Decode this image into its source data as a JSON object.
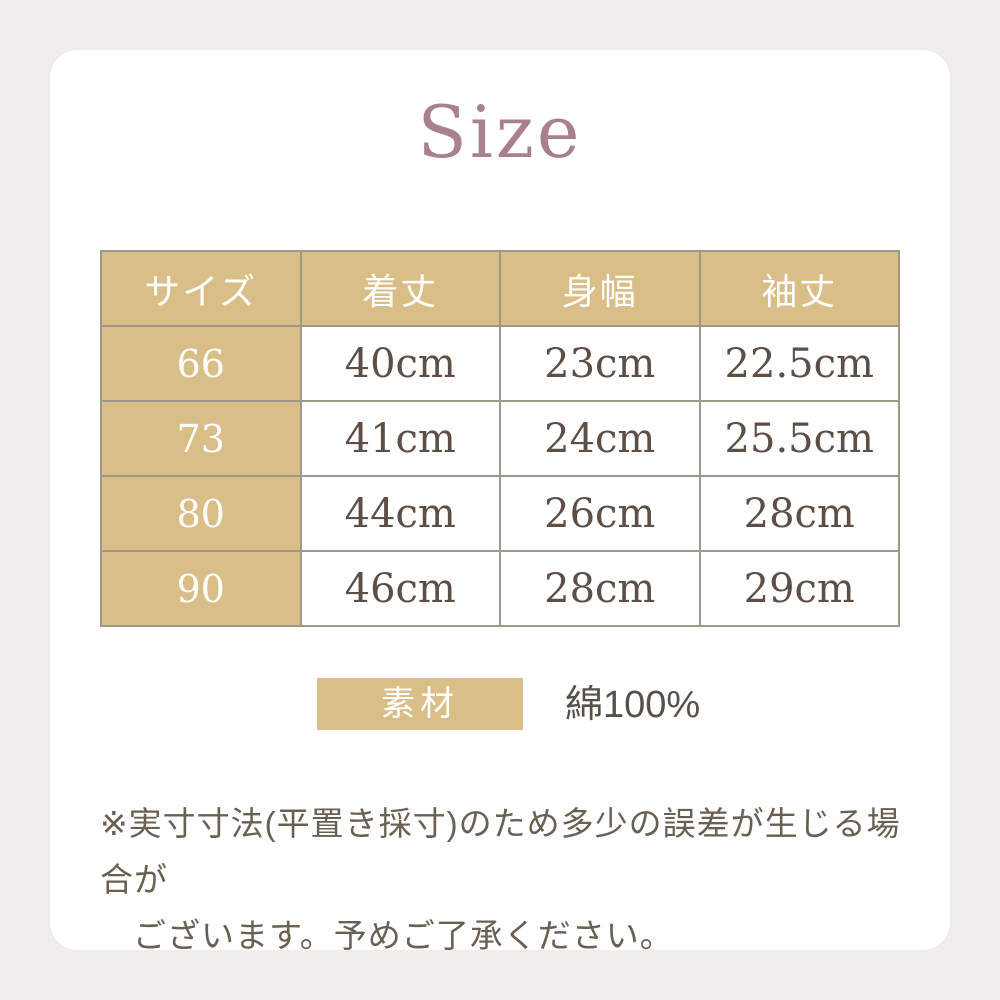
{
  "page": {
    "title": "Size",
    "colors": {
      "page_background": "#f2eded",
      "card_background": "#ffffff",
      "accent_tan": "#d9be87",
      "table_border": "#9e988a",
      "title_text": "#a8808f",
      "cell_text": "#5d4e46",
      "note_text": "#6a6052"
    }
  },
  "size_table": {
    "columns": [
      "サイズ",
      "着丈",
      "身幅",
      "袖丈"
    ],
    "rows": [
      {
        "size": "66",
        "values": [
          "40cm",
          "23cm",
          "22.5cm"
        ]
      },
      {
        "size": "73",
        "values": [
          "41cm",
          "24cm",
          "25.5cm"
        ]
      },
      {
        "size": "80",
        "values": [
          "44cm",
          "26cm",
          "28cm"
        ]
      },
      {
        "size": "90",
        "values": [
          "46cm",
          "28cm",
          "29cm"
        ]
      }
    ]
  },
  "material": {
    "label": "素材",
    "value": "綿100%"
  },
  "note": {
    "line1": "※実寸寸法(平置き採寸)のため多少の誤差が生じる場合が",
    "line2": "ございます。予めご了承ください。"
  }
}
